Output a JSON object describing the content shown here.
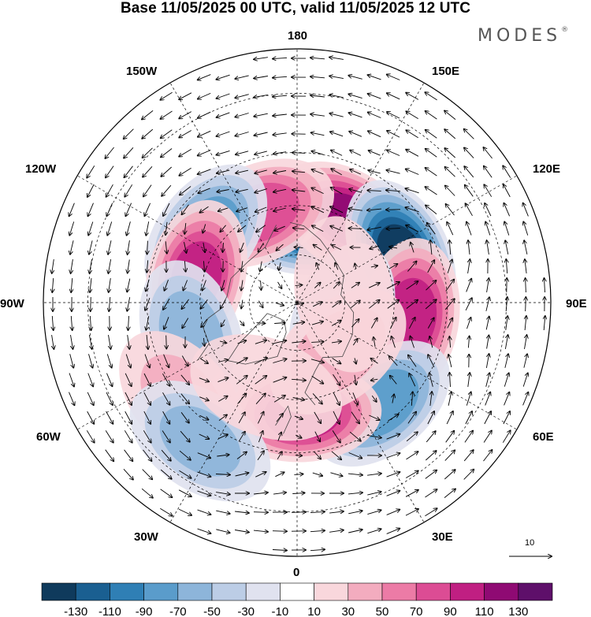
{
  "title": "Base 11/05/2025 00 UTC, valid 11/05/2025 12 UTC",
  "brand": "MODES",
  "brand_mark": "®",
  "longitude_labels": {
    "lon_180": "180",
    "lon_150e": "150E",
    "lon_120e": "120E",
    "lon_90e": "90E",
    "lon_60e": "60E",
    "lon_30e": "30E",
    "lon_0": "0",
    "lon_30w": "30W",
    "lon_60w": "60W",
    "lon_90w": "90W",
    "lon_120w": "120W",
    "lon_150w": "150W"
  },
  "reference_vector": {
    "label": "10"
  },
  "colorbar": {
    "labels": [
      "-130",
      "-110",
      "-90",
      "-70",
      "-50",
      "-30",
      "-10",
      "10",
      "30",
      "50",
      "70",
      "90",
      "110",
      "130"
    ],
    "colors": [
      "#0f3a5c",
      "#1a5f91",
      "#2f7fb5",
      "#5a9ccb",
      "#8db5da",
      "#bccde6",
      "#e0e2ef",
      "#ffffff",
      "#f9d7dc",
      "#f3acbf",
      "#ec7ba6",
      "#dc4c94",
      "#c01f82",
      "#8f0a73",
      "#5e0f6a"
    ]
  },
  "anomaly_centers": [
    {
      "lon": 175,
      "lat": 66,
      "value": -110
    },
    {
      "lon": 148,
      "lat": 60,
      "value": 115
    },
    {
      "lon": 115,
      "lat": 55,
      "value": -130
    },
    {
      "lon": 83,
      "lat": 55,
      "value": 100
    },
    {
      "lon": 40,
      "lat": 50,
      "value": -80
    },
    {
      "lon": 3,
      "lat": 56,
      "value": 100
    },
    {
      "lon": -157,
      "lat": 60,
      "value": 80
    },
    {
      "lon": -127,
      "lat": 55,
      "value": -80
    },
    {
      "lon": -104,
      "lat": 58,
      "value": 95
    },
    {
      "lon": -72,
      "lat": 56,
      "value": -60
    },
    {
      "lon": -50,
      "lat": 45,
      "value": 30
    },
    {
      "lon": -35,
      "lat": 40,
      "value": -55
    },
    {
      "lon": 70,
      "lat": 75,
      "value": -25
    },
    {
      "lon": 40,
      "lat": 70,
      "value": 35
    },
    {
      "lon": 100,
      "lat": 75,
      "value": 20
    },
    {
      "lon": -20,
      "lat": 62,
      "value": 25
    }
  ]
}
